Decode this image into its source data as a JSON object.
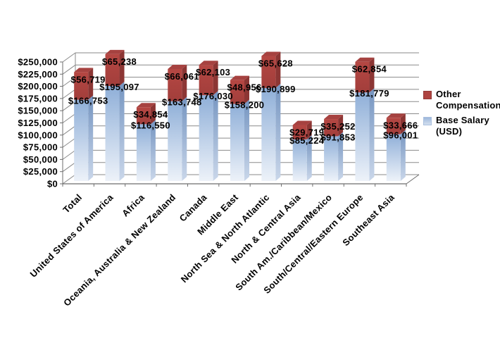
{
  "chart_data": {
    "type": "bar",
    "subtype": "3d-stacked-column",
    "title": "",
    "categories": [
      "Total",
      "United States of America",
      "Africa",
      "Oceania, Australia & New Zealand",
      "Canada",
      "Middle East",
      "North Sea & North Atlantic",
      "North & Central Asia",
      "South Am./Caribbean/Mexico",
      "South/Central/Eastern Europe",
      "Southeast Asia"
    ],
    "series": [
      {
        "name": "Base Salary (USD)",
        "color": "#95B3D7",
        "values": [
          166753,
          195097,
          116550,
          163748,
          176030,
          158200,
          190899,
          85224,
          91853,
          181779,
          96001
        ],
        "labels": [
          "$166,753",
          "$195,097",
          "$116,550",
          "$163,748",
          "$176,030",
          "$158,200",
          "$190,899",
          "$85,224",
          "$91,853",
          "$181,779",
          "$96,001"
        ]
      },
      {
        "name": "Other Compensation",
        "color": "#B64845",
        "values": [
          56719,
          65238,
          34854,
          66061,
          62103,
          48956,
          65628,
          29719,
          35252,
          62854,
          33666
        ],
        "labels": [
          "$56,719",
          "$65,238",
          "$34,854",
          "$66,061",
          "$62,103",
          "$48,956",
          "$65,628",
          "$29,719",
          "$35,252",
          "$62,854",
          "$33,666"
        ]
      }
    ],
    "y_axis": {
      "min": 0,
      "max": 250000,
      "step": 25000,
      "tick_labels": [
        "$0",
        "$25,000",
        "$50,000",
        "$75,000",
        "$100,000",
        "$125,000",
        "$150,000",
        "$175,000",
        "$200,000",
        "$225,000",
        "$250,000"
      ]
    },
    "legend": {
      "position": "right",
      "entries": [
        "Other Compensation",
        "Base Salary (USD)"
      ]
    },
    "grid": true
  },
  "colors": {
    "other_front": "#B54743",
    "other_side": "#8C3634",
    "other_top": "#A64240",
    "base_front_top": "#8FAFD8",
    "base_front_bottom": "#EDF2F9",
    "base_side_top": "#7494C0",
    "base_side_bottom": "#CAD7EA",
    "gridline": "#8A8A8A",
    "axis": "#6E6E6E",
    "label": "#000000"
  }
}
